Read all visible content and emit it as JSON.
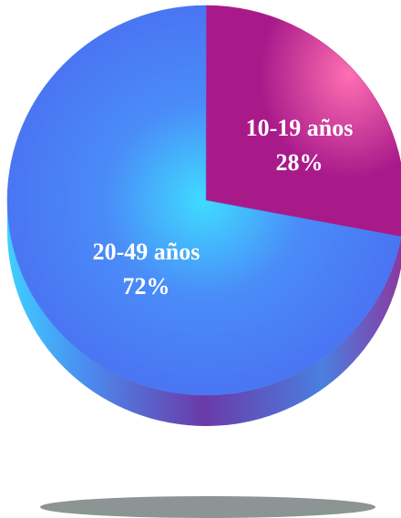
{
  "chart_data": {
    "type": "pie",
    "categories": [
      "10-19 años",
      "20-49 años"
    ],
    "values": [
      28,
      72
    ],
    "value_labels": [
      "28%",
      "72%"
    ],
    "colors": [
      "#c0237f",
      "#4a7ff6"
    ]
  }
}
